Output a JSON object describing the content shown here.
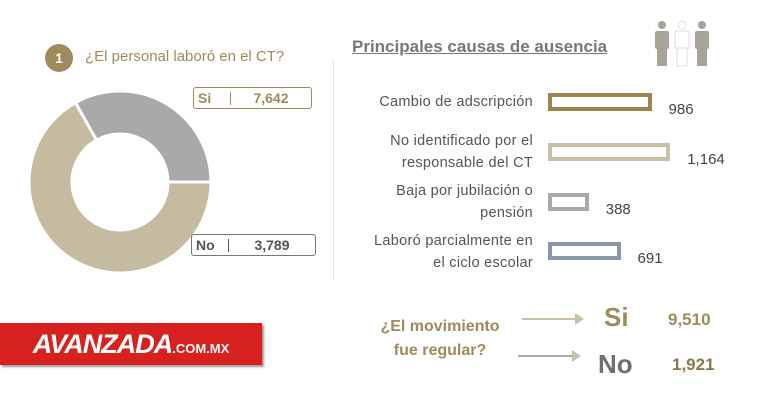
{
  "question1": {
    "number": "1",
    "title": "¿El personal laboró en el CT?"
  },
  "chart_data": [
    {
      "type": "pie",
      "title": "¿El personal laboró en el CT?",
      "categories": [
        "Si",
        "No"
      ],
      "values": [
        7642,
        3789
      ],
      "colors": [
        "#c4bba1",
        "#a9a9a9"
      ]
    },
    {
      "type": "bar",
      "title": "Principales causas de ausencia",
      "orientation": "horizontal",
      "categories": [
        "Cambio de adscripción",
        "No identificado por el responsable del CT",
        "Baja por jubilación o pensión",
        "Laboró parcialmente en el ciclo escolar"
      ],
      "values": [
        986,
        1164,
        388,
        691
      ],
      "value_labels": [
        "986",
        "1,164",
        "388",
        "691"
      ],
      "colors": [
        "#9c8550",
        "#c9bfa6",
        "#a9a9a9",
        "#8b97ab"
      ]
    }
  ],
  "legend": {
    "si_label": "Si",
    "si_value": "7,642",
    "no_label": "No",
    "no_value": "3,789"
  },
  "causes": {
    "title": "Principales causas de ausencia",
    "labels": [
      [
        "Cambio de adscripción"
      ],
      [
        "No identificado por el",
        "responsable del CT"
      ],
      [
        "Baja por jubilación o",
        "pensión"
      ],
      [
        "Laboró parcialmente en",
        "el ciclo escolar"
      ]
    ]
  },
  "regular": {
    "question_line1": "¿El movimiento",
    "question_line2": "fue regular?",
    "si_label": "Si",
    "si_value": "9,510",
    "no_label": "No",
    "no_value": "1,921"
  },
  "logo": {
    "main": "AVANZADA",
    "suffix": ".COM.MX"
  }
}
